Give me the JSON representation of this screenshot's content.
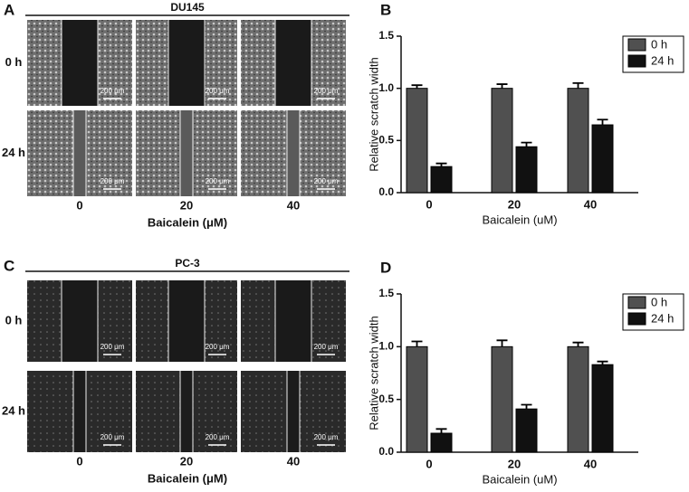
{
  "panels": [
    {
      "letter": "A",
      "title": "DU145",
      "rows": [
        "0 h",
        "24 h"
      ],
      "columns": [
        "0",
        "20",
        "40"
      ],
      "xlabel": "Baicalein (μM)",
      "scale_label": "200 μm"
    },
    {
      "letter": "C",
      "title": "PC-3",
      "rows": [
        "0 h",
        "24 h"
      ],
      "columns": [
        "0",
        "20",
        "40"
      ],
      "xlabel": "Baicalein (μM)",
      "scale_label": "200 μm"
    }
  ],
  "chart_data": [
    {
      "type": "bar",
      "panel_label": "B",
      "xlabel": "Baicalein (uM)",
      "ylabel": "Relative scratch width",
      "categories": [
        "0",
        "20",
        "40"
      ],
      "series": [
        {
          "name": "0 h",
          "color": "#505050",
          "values": [
            1.0,
            1.0,
            1.0
          ],
          "errors": [
            0.03,
            0.04,
            0.05
          ]
        },
        {
          "name": "24 h",
          "color": "#111111",
          "values": [
            0.25,
            0.44,
            0.65
          ],
          "errors": [
            0.03,
            0.04,
            0.05
          ]
        }
      ],
      "ylim": [
        0,
        1.5
      ],
      "yticks": [
        {
          "value": 0,
          "label": "0.0"
        },
        {
          "value": 0.5,
          "label": "0.5"
        },
        {
          "value": 1,
          "label": "1.0"
        },
        {
          "value": 1.5,
          "label": "1.5"
        }
      ],
      "legend": "top right"
    },
    {
      "type": "bar",
      "panel_label": "D",
      "xlabel": "Baicalein (uM)",
      "ylabel": "Relative scratch width",
      "categories": [
        "0",
        "20",
        "40"
      ],
      "series": [
        {
          "name": "0 h",
          "color": "#505050",
          "values": [
            1.0,
            1.0,
            1.0
          ],
          "errors": [
            0.05,
            0.06,
            0.04
          ]
        },
        {
          "name": "24 h",
          "color": "#111111",
          "values": [
            0.18,
            0.41,
            0.83
          ],
          "errors": [
            0.04,
            0.04,
            0.03
          ]
        }
      ],
      "ylim": [
        0,
        1.5
      ],
      "yticks": [
        {
          "value": 0,
          "label": "0.0"
        },
        {
          "value": 0.5,
          "label": "0.5"
        },
        {
          "value": 1,
          "label": "1.0"
        },
        {
          "value": 1.5,
          "label": "1.5"
        }
      ],
      "legend": "top right"
    }
  ]
}
